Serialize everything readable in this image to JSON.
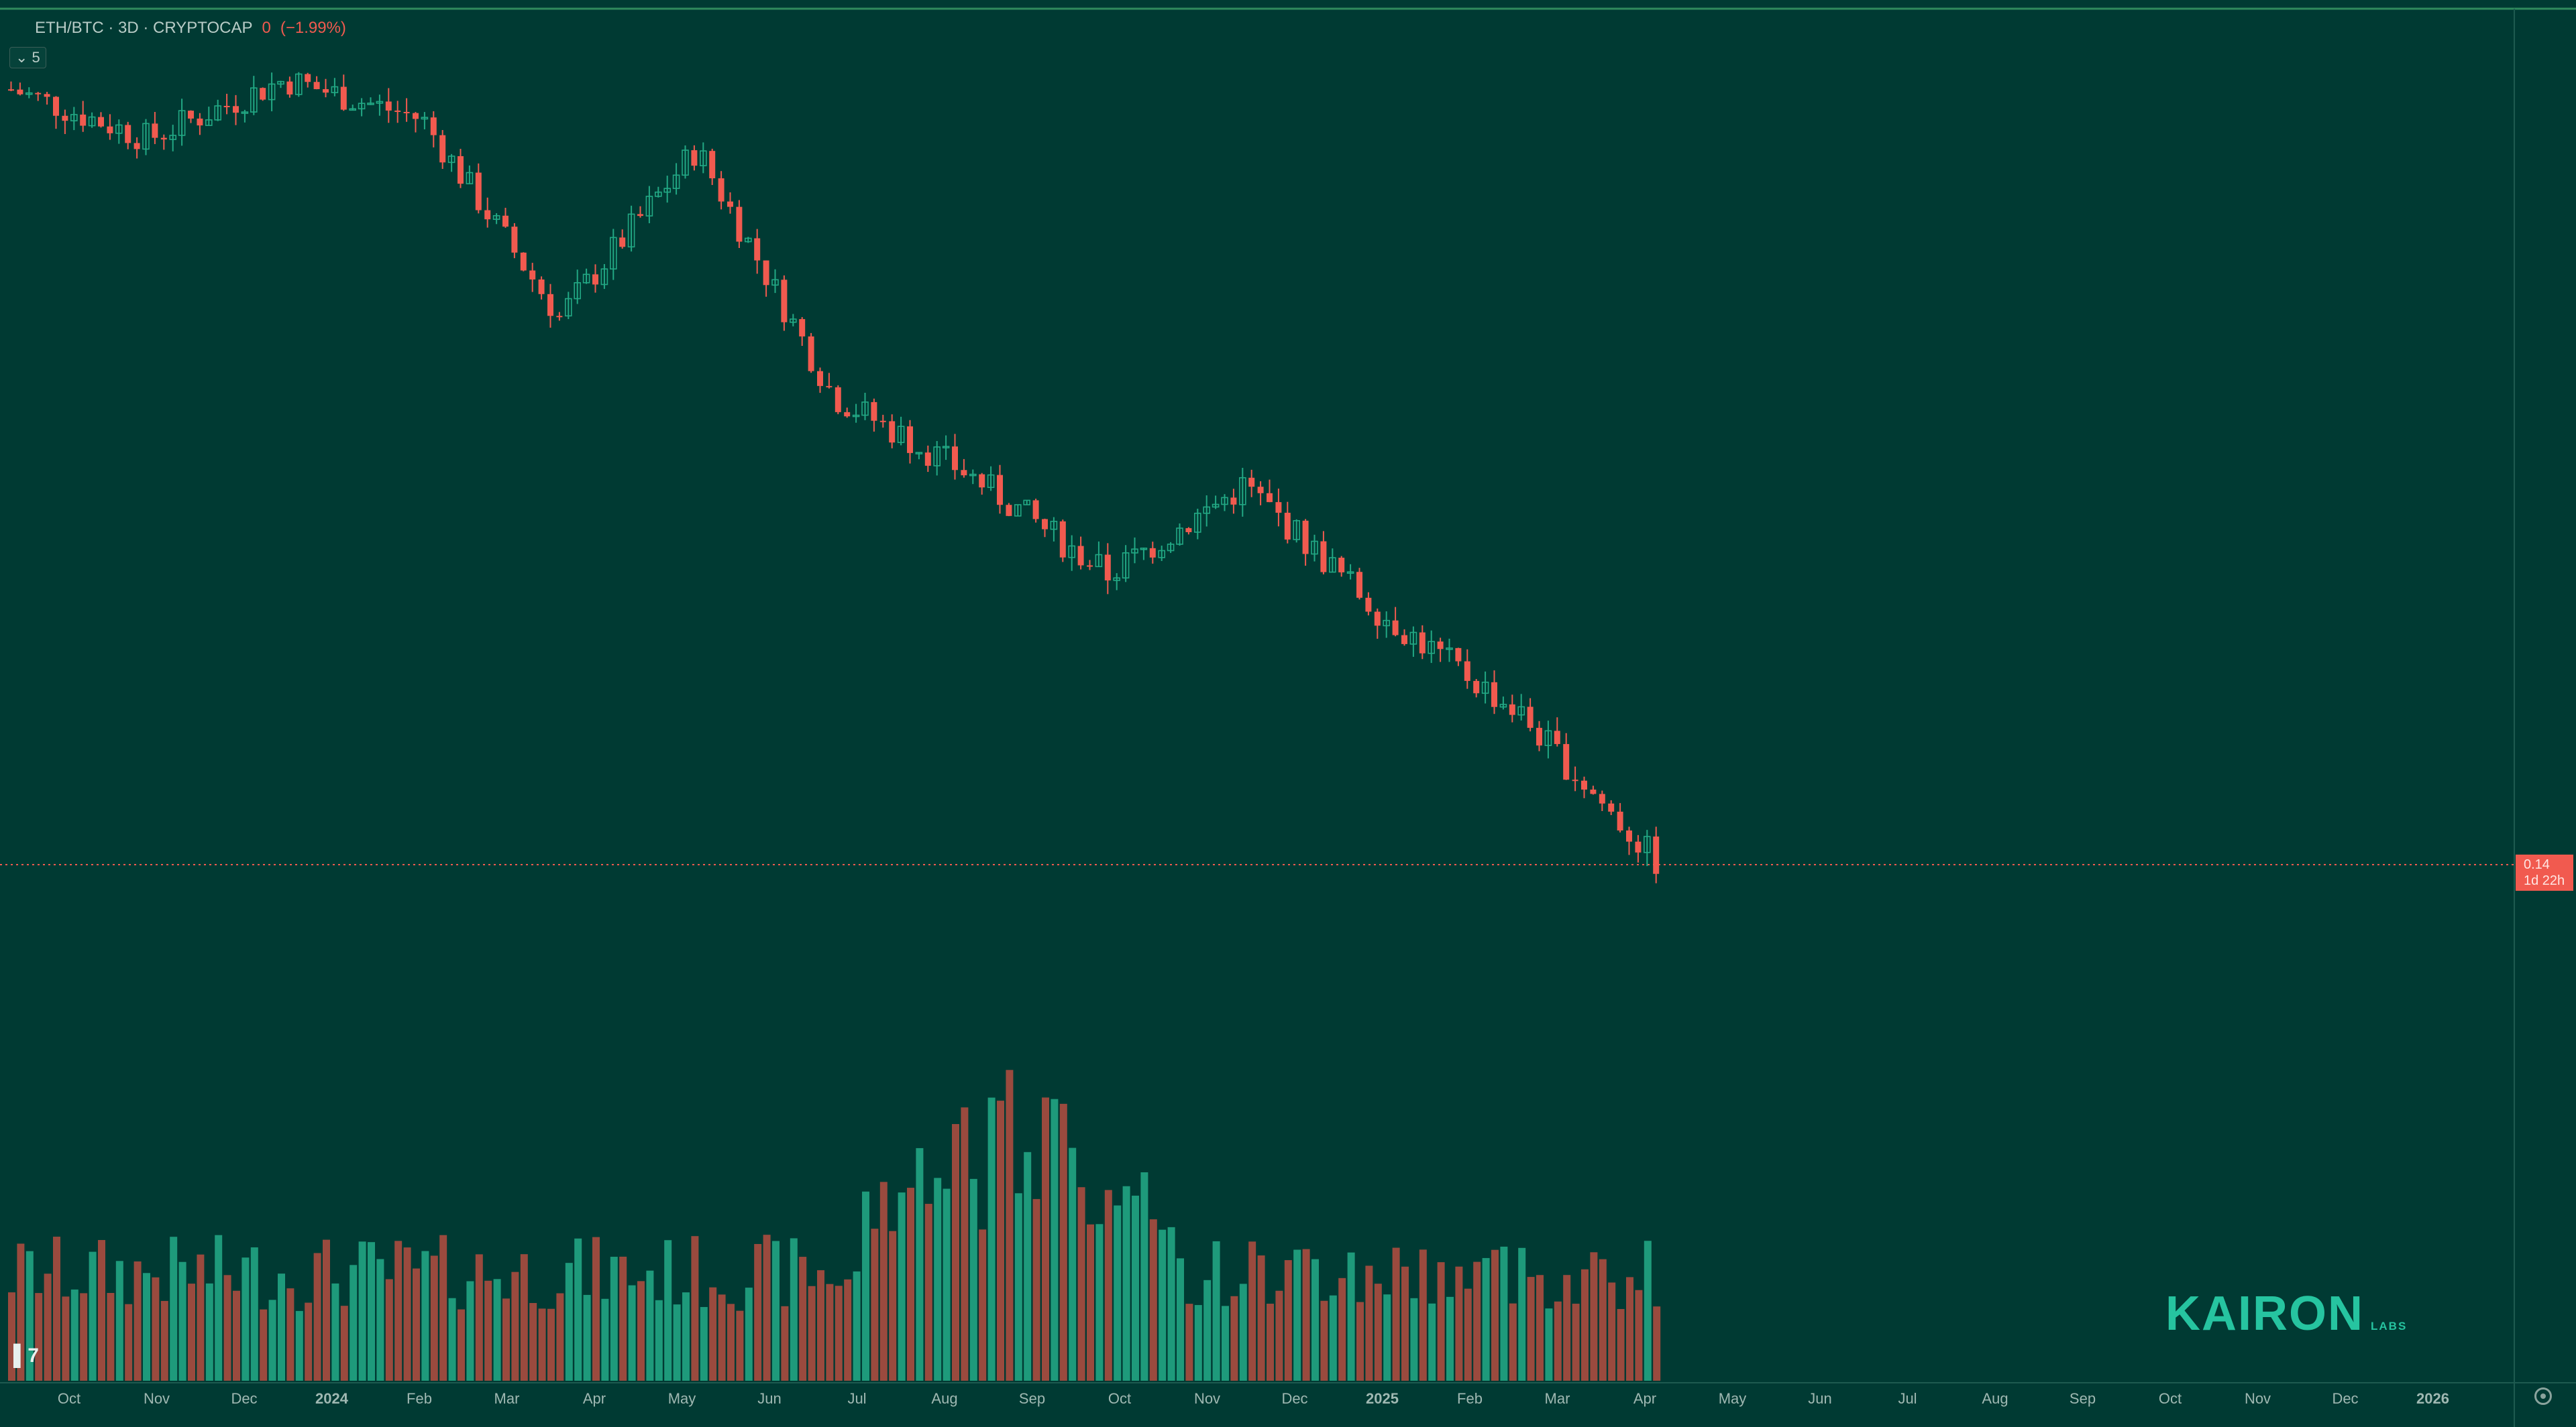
{
  "legend": {
    "symbol": "ETH/BTC · 3D · CRYPTOCAP",
    "value": "0",
    "change": "(−1.99%)"
  },
  "indicator_toggle": {
    "icon": "chevron-down-icon",
    "count": "5"
  },
  "price_badge": {
    "price": "0.14",
    "countdown": "1d 22h"
  },
  "watermark": {
    "brand": "KAIRON",
    "sub": "LABS"
  },
  "colors": {
    "background": "#003a33",
    "up": "#22a884",
    "down": "#f15a4f",
    "volume_up": "#1e9a7b",
    "volume_down": "#9a4a3e",
    "axis_text": "#9fb8b2"
  },
  "chart_data": {
    "type": "candlestick",
    "interval": "3D",
    "x_axis_labels": [
      "Oct",
      "Nov",
      "Dec",
      "2024",
      "Feb",
      "Mar",
      "Apr",
      "May",
      "Jun",
      "Jul",
      "Aug",
      "Sep",
      "Oct",
      "Nov",
      "Dec",
      "2025",
      "Feb",
      "Mar",
      "Apr",
      "May",
      "Jun",
      "Jul",
      "Aug",
      "Sep",
      "Oct",
      "Nov",
      "Dec",
      "2026"
    ],
    "x_axis_bold": [
      "2024",
      "2025",
      "2026"
    ],
    "current_price": 0.14,
    "ohlc_key_points": [
      {
        "date": "2023-10",
        "close": 0.0585
      },
      {
        "date": "2023-12",
        "close": 0.056
      },
      {
        "date": "2024-01",
        "close": 0.059
      },
      {
        "date": "2024-03",
        "close": 0.057
      },
      {
        "date": "2024-05",
        "close": 0.047
      },
      {
        "date": "2024-06",
        "close": 0.0555
      },
      {
        "date": "2024-08",
        "close": 0.043
      },
      {
        "date": "2024-10",
        "close": 0.039
      },
      {
        "date": "2024-11",
        "close": 0.034
      },
      {
        "date": "2024-12",
        "close": 0.0385
      },
      {
        "date": "2025-01",
        "close": 0.032
      },
      {
        "date": "2025-02",
        "close": 0.027
      },
      {
        "date": "2025-03",
        "close": 0.0195
      }
    ]
  }
}
